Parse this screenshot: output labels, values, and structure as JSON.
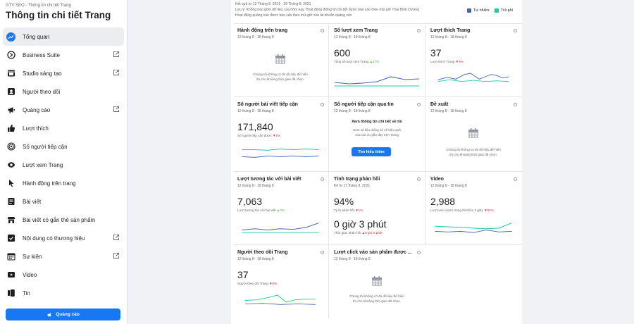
{
  "sidebar": {
    "breadcrumb": "GTV SEO - Thông tin chi tiết Trang",
    "title": "Thông tin chi tiết Trang",
    "items": [
      {
        "label": "Tổng quan"
      },
      {
        "label": "Business Suite"
      },
      {
        "label": "Studio sáng tạo"
      },
      {
        "label": "Người theo dõi"
      },
      {
        "label": "Quảng cáo"
      },
      {
        "label": "Lượt thích"
      },
      {
        "label": "Số người tiếp cận"
      },
      {
        "label": "Lượt xem Trang"
      },
      {
        "label": "Hành động trên trang"
      },
      {
        "label": "Bài viết"
      },
      {
        "label": "Bài viết có gắn thẻ sản phẩm"
      },
      {
        "label": "Nội dung có thương hiệu"
      },
      {
        "label": "Sự kiện"
      },
      {
        "label": "Video"
      },
      {
        "label": "Tin"
      }
    ],
    "boost_label": "Quảng cáo"
  },
  "header": {
    "line1": "Kết quả từ 12 Tháng 8, 2021 - 18 Tháng 8, 2021",
    "line2": "Lưu ý: Không bao gồm dữ liệu của hôm nay. Hoạt động thông tin chi tiết được báo cáo theo múi giờ Thái Bình Dương",
    "line3": "Hoạt động quảng cáo được báo cáo theo múi giờ của tài khoản quảng cáo",
    "legend_organic": "Tự nhiên",
    "legend_paid": "Trả phí",
    "color_organic": "#4267b2",
    "color_paid": "#1ac9a8"
  },
  "cards": {
    "actions": {
      "title": "Hành động trên trang",
      "date": "12 tháng 8 - 18 tháng 8",
      "empty": "Chúng tôi không có đủ dữ liệu để hiển thị cho khoảng thời gian đã chọn."
    },
    "views": {
      "title": "Số lượt xem Trang",
      "date": "12 tháng 8 - 18 tháng 8",
      "value": "600",
      "sub": "Tổng số lượt xem Trang",
      "change": "▲17%"
    },
    "likes": {
      "title": "Lượt thích Trang",
      "date": "12 tháng 8 - 18 tháng 8",
      "value": "37",
      "sub": "Lượt thích Trang",
      "change": "▼3%"
    },
    "reach": {
      "title": "Số người bài viết tiếp cận",
      "date": "12 tháng 8 - 18 tháng 8",
      "value": "171,840",
      "sub": "Số người tiếp cận được",
      "change": "▼1%"
    },
    "story": {
      "title": "Số người tiếp cận qua tin",
      "date": "12 tháng 8 - 18 tháng 8",
      "heading": "Xem thông tin chi tiết về tin",
      "desc": "Xem số liệu thống kê về hiệu quả của các tin gần đây trên Trang",
      "button": "Tìm hiểu thêm"
    },
    "recs": {
      "title": "Đề xuất",
      "date": "12 tháng 8 - 18 tháng 8",
      "empty": "Chúng tôi không có đủ dữ liệu để hiển thị cho khoảng thời gian đã chọn."
    },
    "engage": {
      "title": "Lượt tương tác với bài viết",
      "date": "12 tháng 8 - 18 tháng 8",
      "value": "7,063",
      "sub": "Lượt tương tác với bài viết",
      "change": "▲7%"
    },
    "response": {
      "title": "Tình trạng phản hồi",
      "date": "Kể từ 17 tháng 8, 2021",
      "value": "94%",
      "sub": "Tỷ lệ phản hồi",
      "change": "▼1%",
      "value2": "0 giờ 3 phút",
      "sub2": "Thời gian phản hồi",
      "change2": "▲6 giờ 0 phút"
    },
    "video": {
      "title": "Video",
      "date": "12 tháng 8 - 18 tháng 8",
      "value": "2,988",
      "sub": "Lượt xem video trong tối thiểu 3 giây",
      "change": "▼82%"
    },
    "followers": {
      "title": "Người theo dõi Trang",
      "date": "12 tháng 8 - 18 tháng 8",
      "value": "37",
      "sub": "Người theo dõi Trang",
      "change": "▼5%"
    },
    "product": {
      "title": "Lượt click vào sản phẩm được ...",
      "date": "12 tháng 8 - 18 tháng 8",
      "empty": "Chúng tôi không có đủ dữ liệu để hiển thị cho khoảng thời gian đã chọn."
    }
  }
}
